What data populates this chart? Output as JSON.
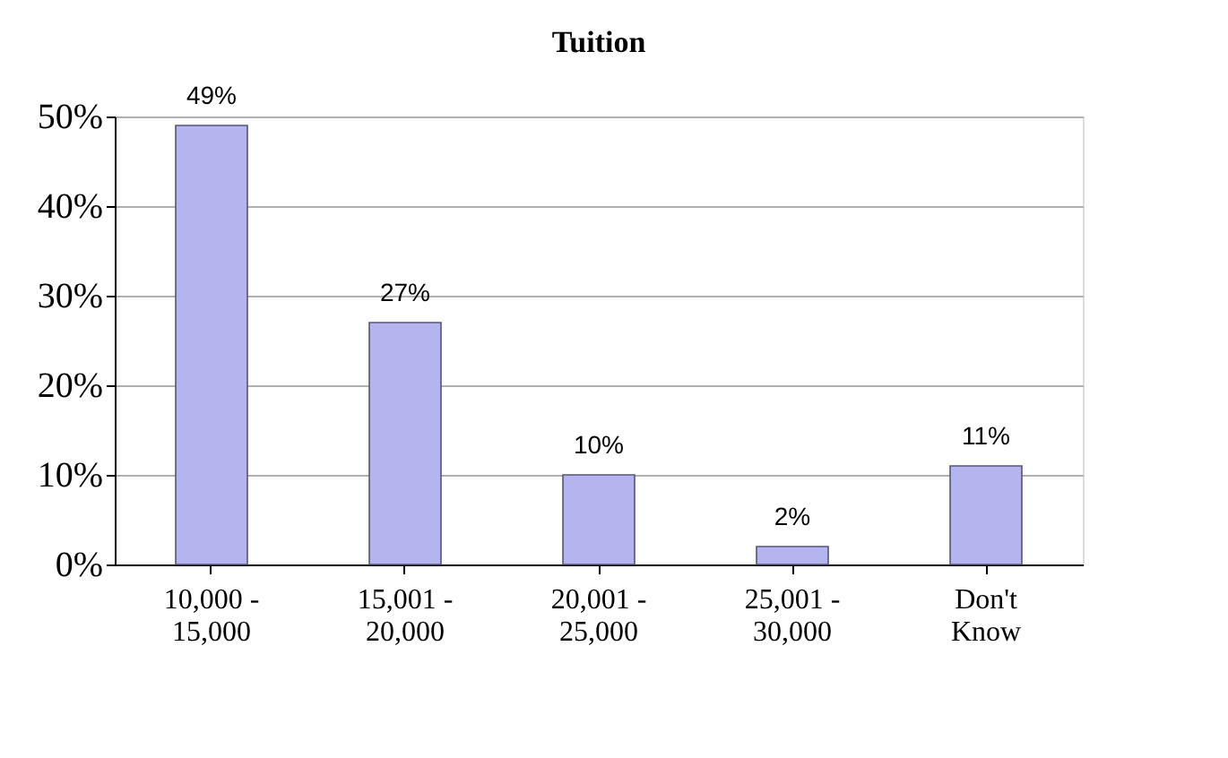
{
  "chart_data": {
    "type": "bar",
    "title": "Tuition",
    "categories": [
      "10,000 - 15,000",
      "15,001 - 20,000",
      "20,001 - 25,000",
      "25,001 - 30,000",
      "Don't Know"
    ],
    "values": [
      49,
      27,
      10,
      2,
      11
    ],
    "value_labels": [
      "49%",
      "27%",
      "10%",
      "2%",
      "11%"
    ],
    "color": "#b4b4ee",
    "ylim": [
      0,
      50
    ],
    "yticks": [
      {
        "value": 0,
        "label": "0%"
      },
      {
        "value": 10,
        "label": "10%"
      },
      {
        "value": 20,
        "label": "20%"
      },
      {
        "value": 30,
        "label": "30%"
      },
      {
        "value": 40,
        "label": "40%"
      },
      {
        "value": 50,
        "label": "50%"
      }
    ],
    "grid": "y"
  }
}
